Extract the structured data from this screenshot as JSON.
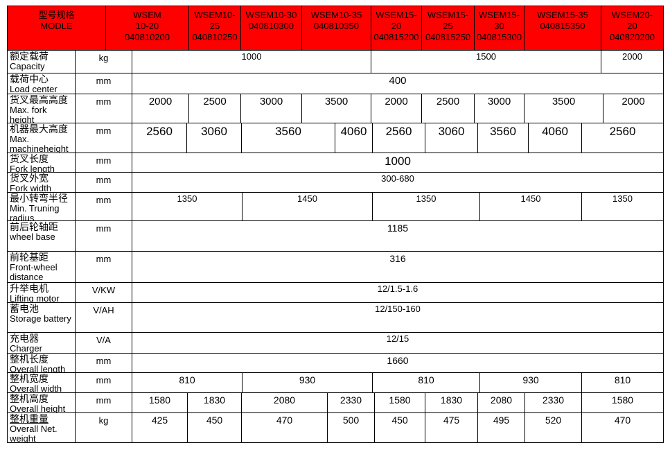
{
  "table": {
    "colors": {
      "header_bg": "#ff0000",
      "border": "#000000",
      "text": "#000000",
      "page_bg": "#ffffff"
    },
    "header": {
      "cells": [
        {
          "name": "model-title",
          "lines": [
            "型号规格",
            "MODLE"
          ]
        },
        {
          "name": "model-wsem10-20",
          "lines": [
            "WSEM",
            "10-20",
            "040810200"
          ]
        },
        {
          "name": "model-wsem10-25",
          "lines": [
            "WSEM10-",
            "25",
            "040810250"
          ]
        },
        {
          "name": "model-wsem10-30",
          "lines": [
            "WSEM10-30",
            "040810300"
          ]
        },
        {
          "name": "model-wsem10-35",
          "lines": [
            "WSEM10-35",
            "040810350"
          ]
        },
        {
          "name": "model-wsem15-20",
          "lines": [
            "WSEM15-",
            "20",
            "040815200"
          ]
        },
        {
          "name": "model-wsem15-25",
          "lines": [
            "WSEM15-",
            "25",
            "040815250"
          ]
        },
        {
          "name": "model-wsem15-30",
          "lines": [
            "WSEM15-",
            "30",
            "040815300"
          ]
        },
        {
          "name": "model-wsem15-35",
          "lines": [
            "WSEM15-35",
            "040815350"
          ]
        },
        {
          "name": "model-wsem20-20",
          "lines": [
            "WSEM20-",
            "20",
            "040820200"
          ]
        }
      ]
    },
    "rows": [
      {
        "id": "capacity",
        "label_cn": "额定载荷",
        "label_en": "Capacity",
        "unit": "kg",
        "cells": [
          "1000",
          "1500",
          "2000"
        ]
      },
      {
        "id": "load_center",
        "label_cn": "载荷中心",
        "label_en": "Load center",
        "unit": "mm",
        "cells": [
          "400"
        ]
      },
      {
        "id": "fork_height",
        "label_cn": "货叉最高高度",
        "label_en": "Max. fork height",
        "unit": "mm",
        "cells": [
          "2000",
          "2500",
          "3000",
          "3500",
          "2000",
          "2500",
          "3000",
          "3500",
          "2000"
        ]
      },
      {
        "id": "machine_height",
        "label_cn": "机器最大高度",
        "label_en": "Max. machineheight",
        "unit": "mm",
        "cells": [
          "2560",
          "3060",
          "3560",
          "4060",
          "2560",
          "3060",
          "3560",
          "4060",
          "2560"
        ]
      },
      {
        "id": "fork_length",
        "label_cn": "货叉长度",
        "label_en": "Fork length",
        "unit": "mm",
        "cells": [
          "1000"
        ]
      },
      {
        "id": "fork_width",
        "label_cn": "货叉外宽",
        "label_en": "Fork width",
        "unit": "mm",
        "cells": [
          "300-680"
        ]
      },
      {
        "id": "turning_radius",
        "label_cn": "最小转弯半径",
        "label_en": "Min. Truning radius",
        "unit": "mm",
        "cells": [
          "1350",
          "1450",
          "1350",
          "1450",
          "1350"
        ]
      },
      {
        "id": "wheel_base",
        "label_cn": "前后轮轴距",
        "label_en": "wheel base",
        "unit": "mm",
        "cells": [
          "1185"
        ]
      },
      {
        "id": "front_wheel",
        "label_cn": "前轮基距",
        "label_en": "Front-wheel distance",
        "unit": "mm",
        "cells": [
          "316"
        ]
      },
      {
        "id": "lifting_motor",
        "label_cn": "升举电机",
        "label_en": "Lifting motor",
        "unit": "V/KW",
        "cells": [
          "12/1.5-1.6"
        ]
      },
      {
        "id": "battery",
        "label_cn": "蓄电池",
        "label_en": "Storage battery",
        "unit": "V/AH",
        "cells": [
          "12/150-160"
        ]
      },
      {
        "id": "charger",
        "label_cn": "充电器",
        "label_en": "Charger",
        "unit": "V/A",
        "cells": [
          "12/15"
        ]
      },
      {
        "id": "overall_length",
        "label_cn": "整机长度",
        "label_en": "Overall length",
        "unit": "mm",
        "cells": [
          "1660"
        ]
      },
      {
        "id": "overall_width",
        "label_cn": "整机宽度",
        "label_en": "Overall width",
        "unit": "mm",
        "cells": [
          "810",
          "930",
          "810",
          "930",
          "810"
        ]
      },
      {
        "id": "overall_height",
        "label_cn": "整机高度",
        "label_en": "Overall height",
        "unit": "mm",
        "cells": [
          "1580",
          "1830",
          "2080",
          "2330",
          "1580",
          "1830",
          "2080",
          "2330",
          "1580"
        ]
      },
      {
        "id": "net_weight",
        "label_cn": "整机重量",
        "label_en": "Overall Net. weight",
        "unit": "kg",
        "underline_cn": true,
        "cells": [
          "425",
          "450",
          "470",
          "500",
          "450",
          "475",
          "495",
          "520",
          "470"
        ]
      }
    ]
  }
}
